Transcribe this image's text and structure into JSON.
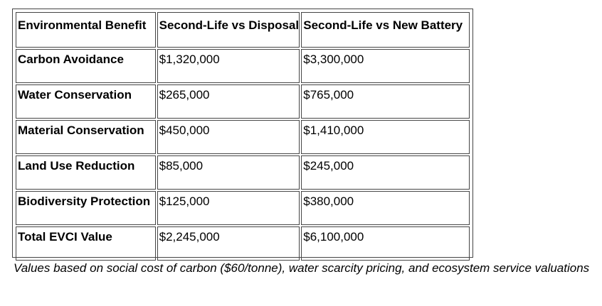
{
  "table": {
    "headers": [
      "Environmental Benefit",
      "Second-Life vs Disposal",
      "Second-Life vs New Battery"
    ],
    "rows": [
      [
        "Carbon Avoidance",
        "$1,320,000",
        "$3,300,000"
      ],
      [
        "Water Conservation",
        "$265,000",
        "$765,000"
      ],
      [
        "Material Conservation",
        "$450,000",
        "$1,410,000"
      ],
      [
        "Land Use Reduction",
        "$85,000",
        "$245,000"
      ],
      [
        "Biodiversity Protection",
        "$125,000",
        "$380,000"
      ],
      [
        "Total EVCI Value",
        "$2,245,000",
        "$6,100,000"
      ]
    ]
  },
  "caption": "Values based on social cost of carbon ($60/tonne), water scarcity pricing, and ecosystem service valuations"
}
